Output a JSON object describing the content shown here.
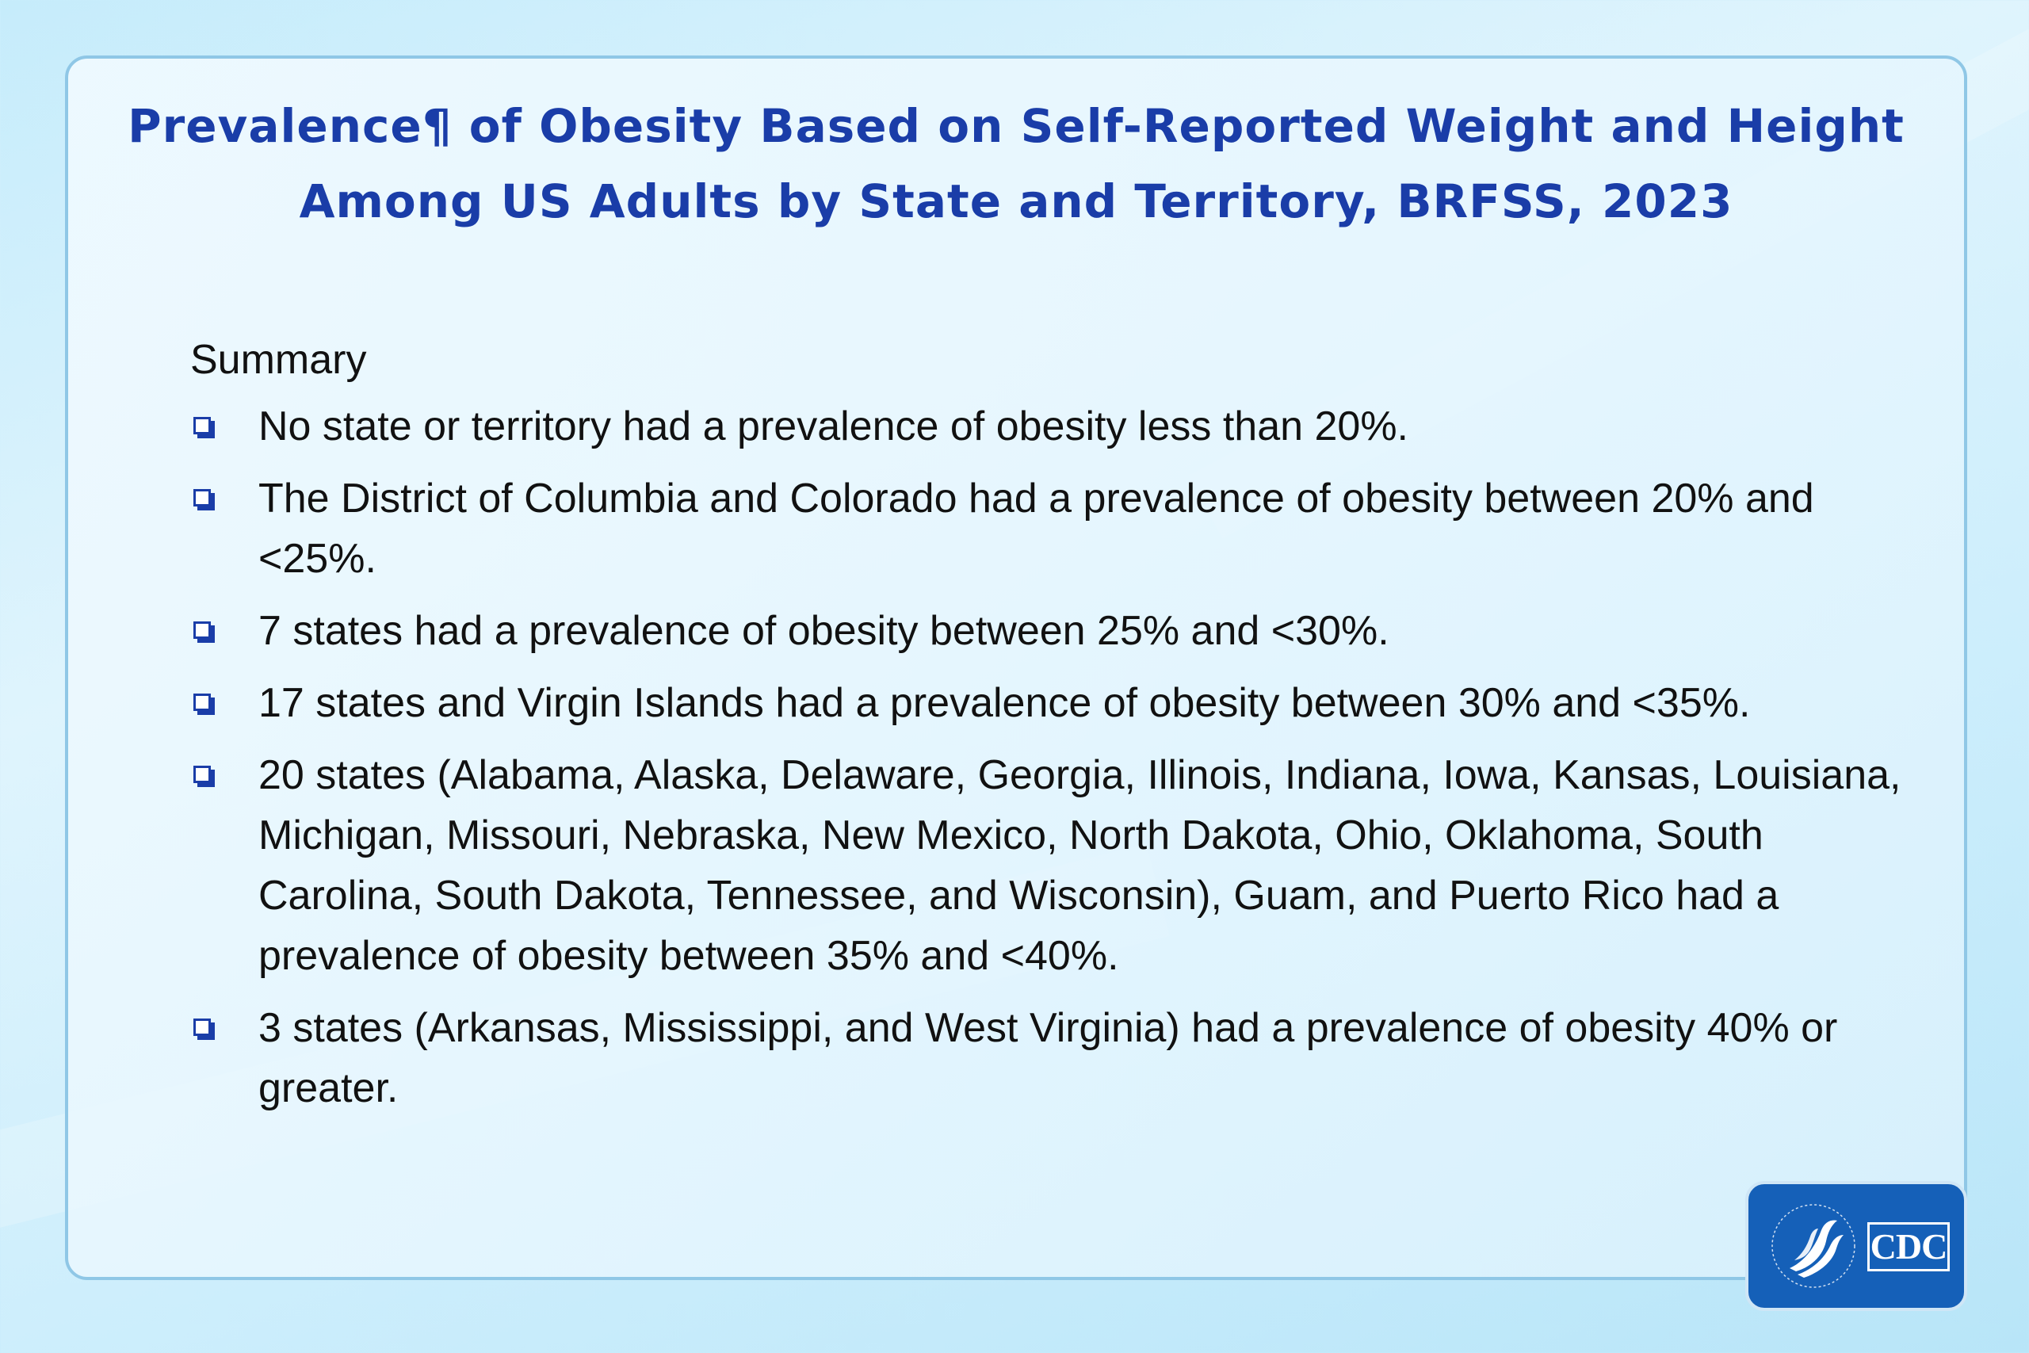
{
  "title": {
    "line1": "Prevalence¶ of Obesity Based on Self-Reported Weight and Height",
    "line2": "Among US Adults by State and Territory, BRFSS, 2023"
  },
  "summary": {
    "heading": "Summary",
    "bullet_icon": "checkbox-square-icon",
    "items": [
      "No state or territory had a prevalence of obesity less than 20%.",
      "The District of Columbia and Colorado had a prevalence of obesity between 20% and <25%.",
      "7 states had a prevalence of obesity between 25% and <30%.",
      "17 states and Virgin Islands had a prevalence of obesity between 30% and <35%.",
      "20 states (Alabama, Alaska, Delaware, Georgia, Illinois, Indiana, Iowa, Kansas, Louisiana, Michigan, Missouri, Nebraska, New Mexico, North Dakota, Ohio, Oklahoma, South Carolina, South Dakota, Tennessee, and Wisconsin), Guam, and Puerto Rico had a prevalence of obesity between 35% and <40%.",
      "3 states (Arkansas, Mississippi, and West Virginia) had a prevalence of obesity 40% or greater."
    ]
  },
  "logo": {
    "text": "CDC",
    "icon": "hhs-eagle-icon"
  },
  "colors": {
    "title": "#1a3da8",
    "bullet": "#1a3da8",
    "logo_background": "#1560b8",
    "panel_border": "#8fc7e6"
  }
}
